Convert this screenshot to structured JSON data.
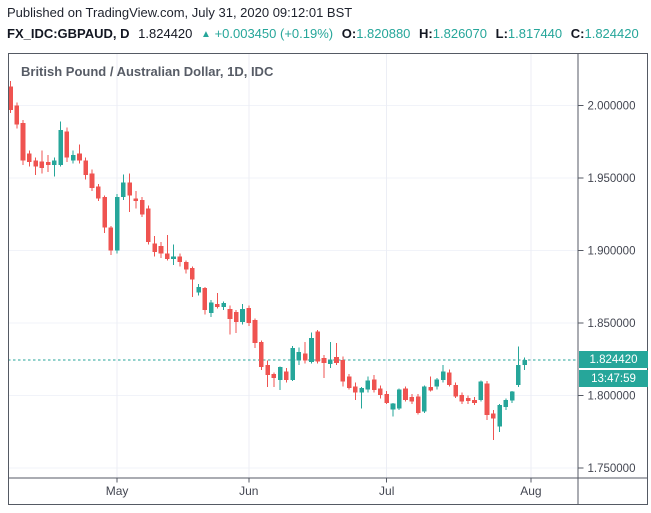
{
  "header": {
    "published_line": "Published on TradingView.com, July 31, 2020 09:12:01 BST",
    "symbol": "FX_IDC:GBPAUD, D",
    "last_price": "1.824420",
    "arrow": "▲",
    "change": "+0.003450 (+0.19%)",
    "o_label": "O:",
    "o_value": "1.820880",
    "h_label": "H:",
    "h_value": "1.826070",
    "l_label": "L:",
    "l_value": "1.817440",
    "c_label": "C:",
    "c_value": "1.824420"
  },
  "chart": {
    "title": "British Pound / Australian Dollar, 1D, IDC",
    "price_badge": "1.824420",
    "countdown_badge": "13:47:59"
  },
  "colors": {
    "up": "#26a69a",
    "down": "#ef5350",
    "accent": "#26a69a",
    "axis": "#555a64",
    "axis_text": "#434651",
    "grid_h": "#f1f3f9",
    "grid_v": "#eceef5"
  },
  "chart_data": {
    "type": "candlestick",
    "title": "British Pound / Australian Dollar, 1D, IDC",
    "symbol": "FX_IDC:GBPAUD",
    "interval": "1D",
    "last_price": 1.82442,
    "countdown": "13:47:59",
    "ylim": [
      1.7431,
      2.0362
    ],
    "grid": true,
    "y_axis": [
      {
        "v": 2.0,
        "label": "2.000000"
      },
      {
        "v": 1.95,
        "label": "1.950000"
      },
      {
        "v": 1.9,
        "label": "1.900000"
      },
      {
        "v": 1.85,
        "label": "1.850000"
      },
      {
        "v": 1.8,
        "label": "1.800000"
      },
      {
        "v": 1.75,
        "label": "1.750000"
      }
    ],
    "months": [
      {
        "label": "May",
        "i": 17
      },
      {
        "label": "Jun",
        "i": 38
      },
      {
        "label": "Jul",
        "i": 60
      },
      {
        "label": "Aug",
        "i": 83
      }
    ],
    "candles": [
      {
        "d": "Apr 8",
        "o": 2.013,
        "h": 2.017,
        "l": 1.995,
        "c": 1.997
      },
      {
        "d": "Apr 9",
        "o": 2.0,
        "h": 2.002,
        "l": 1.984,
        "c": 1.987
      },
      {
        "d": "Apr 10",
        "o": 1.988,
        "h": 1.99,
        "l": 1.959,
        "c": 1.962
      },
      {
        "d": "Apr 13",
        "o": 1.967,
        "h": 1.969,
        "l": 1.958,
        "c": 1.961
      },
      {
        "d": "Apr 14",
        "o": 1.962,
        "h": 1.964,
        "l": 1.952,
        "c": 1.958
      },
      {
        "d": "Apr 15",
        "o": 1.9615,
        "h": 1.969,
        "l": 1.953,
        "c": 1.957
      },
      {
        "d": "Apr 16",
        "o": 1.961,
        "h": 1.966,
        "l": 1.954,
        "c": 1.959
      },
      {
        "d": "Apr 17",
        "o": 1.959,
        "h": 1.964,
        "l": 1.951,
        "c": 1.962
      },
      {
        "d": "Apr 20",
        "o": 1.959,
        "h": 1.989,
        "l": 1.958,
        "c": 1.983
      },
      {
        "d": "Apr 21",
        "o": 1.982,
        "h": 1.985,
        "l": 1.961,
        "c": 1.964
      },
      {
        "d": "Apr 22",
        "o": 1.962,
        "h": 1.969,
        "l": 1.96,
        "c": 1.966
      },
      {
        "d": "Apr 23",
        "o": 1.967,
        "h": 1.973,
        "l": 1.96,
        "c": 1.962
      },
      {
        "d": "Apr 24",
        "o": 1.962,
        "h": 1.964,
        "l": 1.949,
        "c": 1.952
      },
      {
        "d": "Apr 27",
        "o": 1.953,
        "h": 1.956,
        "l": 1.941,
        "c": 1.943
      },
      {
        "d": "Apr 28",
        "o": 1.944,
        "h": 1.946,
        "l": 1.934,
        "c": 1.936
      },
      {
        "d": "Apr 29",
        "o": 1.937,
        "h": 1.938,
        "l": 1.912,
        "c": 1.916
      },
      {
        "d": "Apr 30",
        "o": 1.916,
        "h": 1.917,
        "l": 1.897,
        "c": 1.9
      },
      {
        "d": "May 1",
        "o": 1.9,
        "h": 1.939,
        "l": 1.898,
        "c": 1.937
      },
      {
        "d": "May 4",
        "o": 1.937,
        "h": 1.9525,
        "l": 1.935,
        "c": 1.947
      },
      {
        "d": "May 5",
        "o": 1.947,
        "h": 1.953,
        "l": 1.9265,
        "c": 1.938
      },
      {
        "d": "May 6",
        "o": 1.936,
        "h": 1.941,
        "l": 1.929,
        "c": 1.934
      },
      {
        "d": "May 7",
        "o": 1.935,
        "h": 1.937,
        "l": 1.923,
        "c": 1.925
      },
      {
        "d": "May 8",
        "o": 1.929,
        "h": 1.931,
        "l": 1.904,
        "c": 1.906
      },
      {
        "d": "May 11",
        "o": 1.905,
        "h": 1.91,
        "l": 1.896,
        "c": 1.899
      },
      {
        "d": "May 12",
        "o": 1.903,
        "h": 1.906,
        "l": 1.895,
        "c": 1.898
      },
      {
        "d": "May 13",
        "o": 1.898,
        "h": 1.9107,
        "l": 1.893,
        "c": 1.894
      },
      {
        "d": "May 14",
        "o": 1.894,
        "h": 1.904,
        "l": 1.89,
        "c": 1.896
      },
      {
        "d": "May 15",
        "o": 1.896,
        "h": 1.898,
        "l": 1.889,
        "c": 1.892
      },
      {
        "d": "May 18",
        "o": 1.892,
        "h": 1.893,
        "l": 1.884,
        "c": 1.887
      },
      {
        "d": "May 19",
        "o": 1.888,
        "h": 1.889,
        "l": 1.868,
        "c": 1.88
      },
      {
        "d": "May 20",
        "o": 1.871,
        "h": 1.877,
        "l": 1.869,
        "c": 1.875
      },
      {
        "d": "May 21",
        "o": 1.874,
        "h": 1.875,
        "l": 1.856,
        "c": 1.859
      },
      {
        "d": "May 22",
        "o": 1.857,
        "h": 1.866,
        "l": 1.854,
        "c": 1.864
      },
      {
        "d": "May 25",
        "o": 1.8632,
        "h": 1.8707,
        "l": 1.86,
        "c": 1.8611
      },
      {
        "d": "May 26",
        "o": 1.8611,
        "h": 1.865,
        "l": 1.859,
        "c": 1.8638
      },
      {
        "d": "May 27",
        "o": 1.8597,
        "h": 1.862,
        "l": 1.842,
        "c": 1.8528
      },
      {
        "d": "May 28",
        "o": 1.8576,
        "h": 1.859,
        "l": 1.843,
        "c": 1.8507
      },
      {
        "d": "May 29",
        "o": 1.8507,
        "h": 1.863,
        "l": 1.849,
        "c": 1.8597
      },
      {
        "d": "Jun 1",
        "o": 1.8604,
        "h": 1.862,
        "l": 1.848,
        "c": 1.85
      },
      {
        "d": "Jun 2",
        "o": 1.8521,
        "h": 1.853,
        "l": 1.8327,
        "c": 1.8362
      },
      {
        "d": "Jun 3",
        "o": 1.8369,
        "h": 1.838,
        "l": 1.8176,
        "c": 1.8197
      },
      {
        "d": "Jun 4",
        "o": 1.821,
        "h": 1.824,
        "l": 1.8059,
        "c": 1.8141
      },
      {
        "d": "Jun 5",
        "o": 1.8148,
        "h": 1.816,
        "l": 1.806,
        "c": 1.8121
      },
      {
        "d": "Jun 8",
        "o": 1.8107,
        "h": 1.82,
        "l": 1.8038,
        "c": 1.8197
      },
      {
        "d": "Jun 9",
        "o": 1.8165,
        "h": 1.819,
        "l": 1.809,
        "c": 1.8107
      },
      {
        "d": "Jun 10",
        "o": 1.8107,
        "h": 1.834,
        "l": 1.81,
        "c": 1.8328
      },
      {
        "d": "Jun 11",
        "o": 1.824,
        "h": 1.833,
        "l": 1.821,
        "c": 1.83
      },
      {
        "d": "Jun 12",
        "o": 1.829,
        "h": 1.8369,
        "l": 1.822,
        "c": 1.824
      },
      {
        "d": "Jun 15",
        "o": 1.823,
        "h": 1.8435,
        "l": 1.822,
        "c": 1.8397
      },
      {
        "d": "Jun 16",
        "o": 1.844,
        "h": 1.8452,
        "l": 1.822,
        "c": 1.8233
      },
      {
        "d": "Jun 17",
        "o": 1.8259,
        "h": 1.828,
        "l": 1.8121,
        "c": 1.8224
      },
      {
        "d": "Jun 18",
        "o": 1.8217,
        "h": 1.8369,
        "l": 1.819,
        "c": 1.825
      },
      {
        "d": "Jun 19",
        "o": 1.8266,
        "h": 1.8362,
        "l": 1.821,
        "c": 1.8224
      },
      {
        "d": "Jun 22",
        "o": 1.8245,
        "h": 1.827,
        "l": 1.8061,
        "c": 1.8095
      },
      {
        "d": "Jun 23",
        "o": 1.813,
        "h": 1.815,
        "l": 1.804,
        "c": 1.8052
      },
      {
        "d": "Jun 24",
        "o": 1.8061,
        "h": 1.809,
        "l": 1.7969,
        "c": 1.802
      },
      {
        "d": "Jun 25",
        "o": 1.802,
        "h": 1.806,
        "l": 1.7912,
        "c": 1.8052
      },
      {
        "d": "Jun 26",
        "o": 1.8043,
        "h": 1.813,
        "l": 1.802,
        "c": 1.8102
      },
      {
        "d": "Jun 29",
        "o": 1.8112,
        "h": 1.8141,
        "l": 1.802,
        "c": 1.8038
      },
      {
        "d": "Jun 30",
        "o": 1.805,
        "h": 1.807,
        "l": 1.798,
        "c": 1.8004
      },
      {
        "d": "Jul 1",
        "o": 1.8011,
        "h": 1.803,
        "l": 1.794,
        "c": 1.795
      },
      {
        "d": "Jul 2",
        "o": 1.7905,
        "h": 1.795,
        "l": 1.7854,
        "c": 1.7946
      },
      {
        "d": "Jul 3",
        "o": 1.7912,
        "h": 1.805,
        "l": 1.79,
        "c": 1.8043
      },
      {
        "d": "Jul 6",
        "o": 1.805,
        "h": 1.8061,
        "l": 1.796,
        "c": 1.7969
      },
      {
        "d": "Jul 7",
        "o": 1.799,
        "h": 1.801,
        "l": 1.794,
        "c": 1.7957
      },
      {
        "d": "Jul 8",
        "o": 1.7992,
        "h": 1.801,
        "l": 1.787,
        "c": 1.788
      },
      {
        "d": "Jul 9",
        "o": 1.7888,
        "h": 1.807,
        "l": 1.788,
        "c": 1.8061
      },
      {
        "d": "Jul 10",
        "o": 1.8057,
        "h": 1.813,
        "l": 1.8027,
        "c": 1.8034
      },
      {
        "d": "Jul 13",
        "o": 1.8061,
        "h": 1.812,
        "l": 1.804,
        "c": 1.8112
      },
      {
        "d": "Jul 14",
        "o": 1.8107,
        "h": 1.821,
        "l": 1.809,
        "c": 1.8164
      },
      {
        "d": "Jul 15",
        "o": 1.8157,
        "h": 1.818,
        "l": 1.8061,
        "c": 1.8072
      },
      {
        "d": "Jul 16",
        "o": 1.8072,
        "h": 1.809,
        "l": 1.7983,
        "c": 1.7992
      },
      {
        "d": "Jul 17",
        "o": 1.8004,
        "h": 1.802,
        "l": 1.794,
        "c": 1.7957
      },
      {
        "d": "Jul 20",
        "o": 1.7983,
        "h": 1.8,
        "l": 1.7941,
        "c": 1.7962
      },
      {
        "d": "Jul 21",
        "o": 1.7969,
        "h": 1.799,
        "l": 1.7934,
        "c": 1.795
      },
      {
        "d": "Jul 22",
        "o": 1.7969,
        "h": 1.8102,
        "l": 1.796,
        "c": 1.8095
      },
      {
        "d": "Jul 23",
        "o": 1.8084,
        "h": 1.81,
        "l": 1.7831,
        "c": 1.7866
      },
      {
        "d": "Jul 24",
        "o": 1.7877,
        "h": 1.79,
        "l": 1.7693,
        "c": 1.7843
      },
      {
        "d": "Jul 27",
        "o": 1.7785,
        "h": 1.794,
        "l": 1.775,
        "c": 1.7934
      },
      {
        "d": "Jul 28",
        "o": 1.7919,
        "h": 1.798,
        "l": 1.79,
        "c": 1.7969
      },
      {
        "d": "Jul 29",
        "o": 1.7964,
        "h": 1.803,
        "l": 1.795,
        "c": 1.8027
      },
      {
        "d": "Jul 30",
        "o": 1.8073,
        "h": 1.8337,
        "l": 1.806,
        "c": 1.821
      },
      {
        "d": "Jul 31",
        "o": 1.82088,
        "h": 1.82607,
        "l": 1.81744,
        "c": 1.82442
      }
    ]
  }
}
